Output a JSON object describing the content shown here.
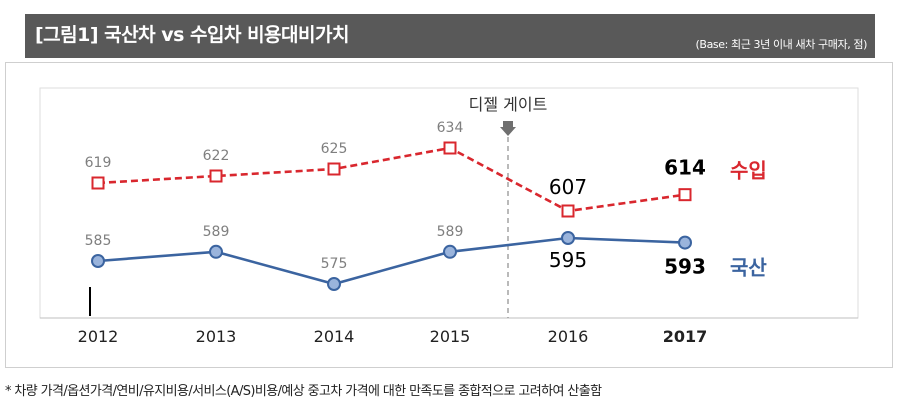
{
  "header": {
    "title": "[그림1] 국산차 vs 수입차 비용대비가치",
    "subtitle": "(Base: 최근 3년 이내 새차 구매자, 점)"
  },
  "chart_data": {
    "type": "line",
    "categories": [
      "2012",
      "2013",
      "2014",
      "2015",
      "2016",
      "2017"
    ],
    "highlight_category": "2017",
    "series": [
      {
        "name": "수입",
        "color": "#d9272e",
        "style": "dashed",
        "marker": "square",
        "values": [
          619,
          622,
          625,
          634,
          607,
          614
        ]
      },
      {
        "name": "국산",
        "color": "#3b64a0",
        "style": "solid",
        "marker": "circle",
        "values": [
          585,
          589,
          575,
          589,
          595,
          593
        ]
      }
    ],
    "annotation": {
      "label": "디젤 게이트",
      "between": [
        "2015",
        "2016"
      ]
    }
  },
  "footnote": "* 차량 가격/옵션가격/연비/유지비용/서비스(A/S)비용/예상 중고차 가격에 대한 만족도를 종합적으로 고려하여 산출함"
}
